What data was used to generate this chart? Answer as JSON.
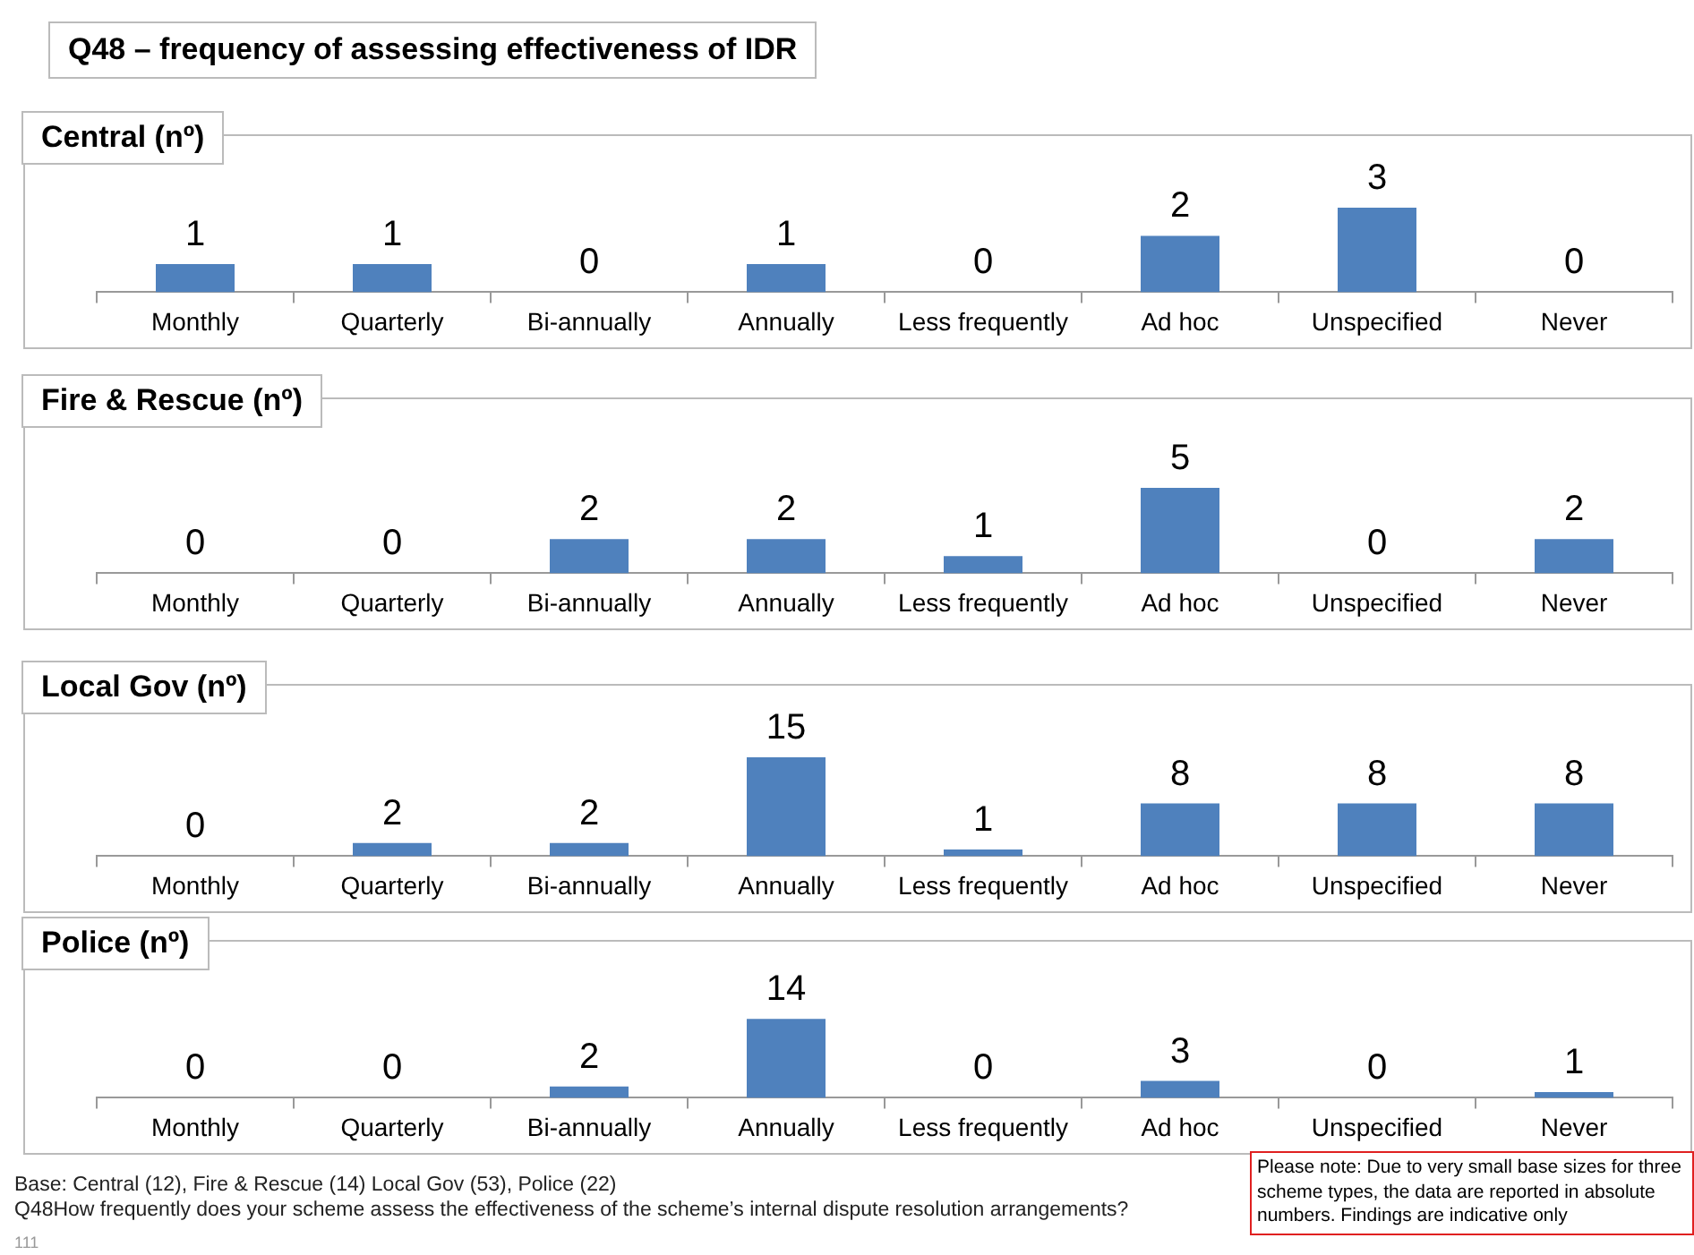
{
  "chart_data": [
    {
      "type": "bar",
      "title": "Q48 –  frequency of assessing effectiveness of IDR",
      "subtitle": "Central (nº)",
      "categories": [
        "Monthly",
        "Quarterly",
        "Bi-annually",
        "Annually",
        "Less frequently",
        "Ad hoc",
        "Unspecified",
        "Never"
      ],
      "values": [
        1,
        1,
        0,
        1,
        0,
        2,
        3,
        0
      ],
      "color": "#4f81bd",
      "data_labels": true,
      "tick_labels": "x",
      "grid": false,
      "legend": false
    },
    {
      "type": "bar",
      "title": "Fire & Rescue (nº)",
      "categories": [
        "Monthly",
        "Quarterly",
        "Bi-annually",
        "Annually",
        "Less frequently",
        "Ad hoc",
        "Unspecified",
        "Never"
      ],
      "values": [
        0,
        0,
        2,
        2,
        1,
        5,
        0,
        2
      ],
      "color": "#4f81bd",
      "data_labels": true,
      "tick_labels": "x",
      "grid": false,
      "legend": false
    },
    {
      "type": "bar",
      "title": "Local Gov (nº)",
      "categories": [
        "Monthly",
        "Quarterly",
        "Bi-annually",
        "Annually",
        "Less frequently",
        "Ad hoc",
        "Unspecified",
        "Never"
      ],
      "values": [
        0,
        2,
        2,
        15,
        1,
        8,
        8,
        8
      ],
      "color": "#4f81bd",
      "data_labels": true,
      "tick_labels": "x",
      "grid": false,
      "legend": false
    },
    {
      "type": "bar",
      "title": "Police (nº)",
      "categories": [
        "Monthly",
        "Quarterly",
        "Bi-annually",
        "Annually",
        "Less frequently",
        "Ad hoc",
        "Unspecified",
        "Never"
      ],
      "values": [
        0,
        0,
        2,
        14,
        0,
        3,
        0,
        1
      ],
      "color": "#4f81bd",
      "data_labels": true,
      "tick_labels": "x",
      "grid": false,
      "legend": false,
      "annotations": [
        "Base: Central (12), Fire & Rescue (14) Local Gov (53), Police (22)",
        "Q48How frequently does your scheme assess the effectiveness of the scheme’s internal dispute resolution arrangements?",
        "Please note: Due to very small base sizes  for three scheme types, the data are reported in absolute numbers.  Findings are indicative only",
        "111"
      ]
    }
  ]
}
